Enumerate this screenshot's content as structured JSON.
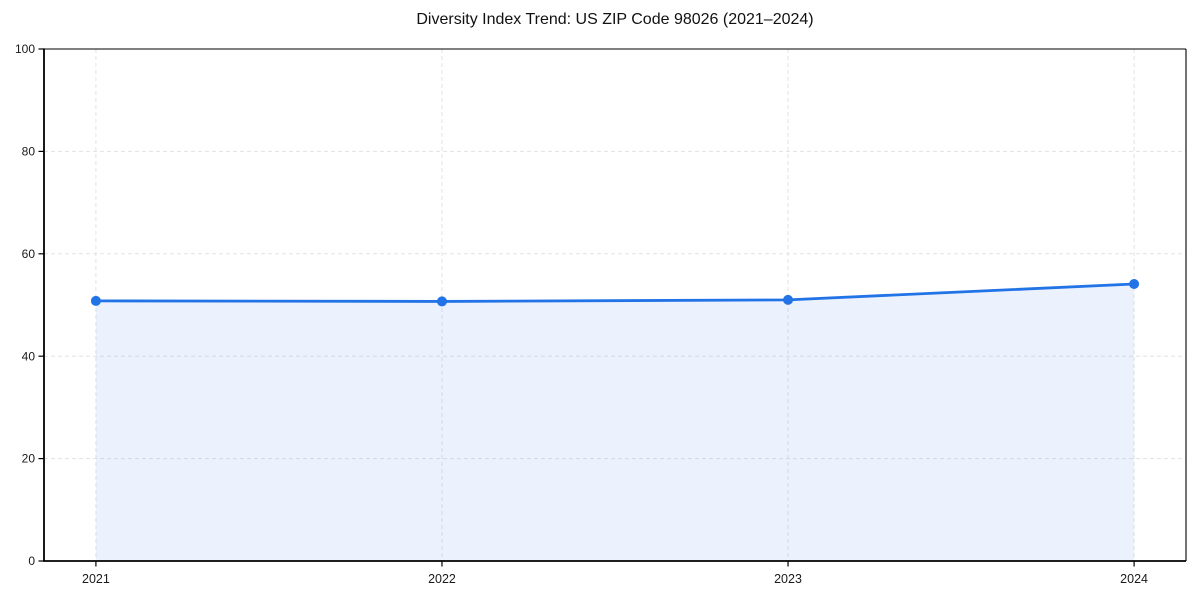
{
  "chart_data": {
    "type": "line",
    "title": "Diversity Index Trend: US ZIP Code 98026 (2021–2024)",
    "categories": [
      "2021",
      "2022",
      "2023",
      "2024"
    ],
    "series": [
      {
        "name": "Diversity Index",
        "values": [
          50.8,
          50.7,
          51.0,
          54.1
        ]
      }
    ],
    "xlabel": "",
    "ylabel": "",
    "ylim": [
      0,
      100
    ],
    "y_ticks": [
      0,
      20,
      40,
      60,
      80,
      100
    ],
    "grid": true,
    "grid_style": "dashed",
    "legend": "none",
    "area_fill": true,
    "marker": "circle",
    "colors": {
      "line": "#2273e6",
      "marker": "#2273e6",
      "area_fill": "#e9f1fc",
      "grid": "#e3e3e3",
      "axis": "#000000",
      "tick_label": "#1a1a1a",
      "background": "#ffffff"
    }
  }
}
